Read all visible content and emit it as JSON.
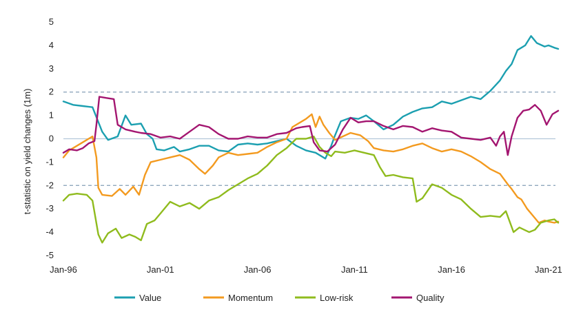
{
  "chart_data": {
    "type": "line",
    "title": "",
    "xlabel": "",
    "ylabel": "t-statistic on yield changes (1m)",
    "xlim": [
      1996.0,
      2021.5
    ],
    "ylim": [
      -5,
      5
    ],
    "y_ticks": [
      5,
      4,
      3,
      2,
      1,
      0,
      -1,
      -2,
      -3,
      -4,
      -5
    ],
    "x_ticks": [
      {
        "label": "Jan-96",
        "x": 1996
      },
      {
        "label": "Jan-01",
        "x": 2001
      },
      {
        "label": "Jan-06",
        "x": 2006
      },
      {
        "label": "Jan-11",
        "x": 2011
      },
      {
        "label": "Jan-16",
        "x": 2016
      },
      {
        "label": "Jan-21",
        "x": 2021
      }
    ],
    "reference_lines": [
      2,
      0,
      -2
    ],
    "legend_position": "bottom",
    "series": [
      {
        "name": "Value",
        "color": "#1b9fb0",
        "points": [
          [
            1996.0,
            1.6
          ],
          [
            1996.5,
            1.45
          ],
          [
            1997.0,
            1.4
          ],
          [
            1997.5,
            1.35
          ],
          [
            1998.0,
            0.3
          ],
          [
            1998.3,
            -0.05
          ],
          [
            1998.8,
            0.1
          ],
          [
            1999.2,
            1.0
          ],
          [
            1999.5,
            0.6
          ],
          [
            2000.0,
            0.65
          ],
          [
            2000.3,
            0.2
          ],
          [
            2000.6,
            0.0
          ],
          [
            2000.8,
            -0.45
          ],
          [
            2001.2,
            -0.5
          ],
          [
            2001.7,
            -0.35
          ],
          [
            2002.0,
            -0.55
          ],
          [
            2002.5,
            -0.45
          ],
          [
            2003.0,
            -0.3
          ],
          [
            2003.5,
            -0.3
          ],
          [
            2004.0,
            -0.5
          ],
          [
            2004.5,
            -0.55
          ],
          [
            2005.0,
            -0.25
          ],
          [
            2005.5,
            -0.2
          ],
          [
            2006.0,
            -0.25
          ],
          [
            2006.5,
            -0.2
          ],
          [
            2007.0,
            -0.1
          ],
          [
            2007.5,
            0.0
          ],
          [
            2008.0,
            -0.3
          ],
          [
            2008.5,
            -0.5
          ],
          [
            2009.0,
            -0.6
          ],
          [
            2009.5,
            -0.85
          ],
          [
            2009.8,
            -0.3
          ],
          [
            2010.0,
            0.15
          ],
          [
            2010.3,
            0.75
          ],
          [
            2010.8,
            0.9
          ],
          [
            2011.2,
            0.85
          ],
          [
            2011.6,
            1.0
          ],
          [
            2012.0,
            0.75
          ],
          [
            2012.5,
            0.4
          ],
          [
            2013.0,
            0.6
          ],
          [
            2013.5,
            0.95
          ],
          [
            2014.0,
            1.15
          ],
          [
            2014.5,
            1.3
          ],
          [
            2015.0,
            1.35
          ],
          [
            2015.5,
            1.6
          ],
          [
            2016.0,
            1.5
          ],
          [
            2016.5,
            1.65
          ],
          [
            2017.0,
            1.8
          ],
          [
            2017.5,
            1.7
          ],
          [
            2018.0,
            2.05
          ],
          [
            2018.5,
            2.5
          ],
          [
            2018.8,
            2.9
          ],
          [
            2019.1,
            3.2
          ],
          [
            2019.4,
            3.8
          ],
          [
            2019.6,
            3.9
          ],
          [
            2019.8,
            4.0
          ],
          [
            2020.1,
            4.4
          ],
          [
            2020.4,
            4.1
          ],
          [
            2020.8,
            3.95
          ],
          [
            2021.0,
            4.0
          ],
          [
            2021.3,
            3.9
          ],
          [
            2021.5,
            3.85
          ]
        ]
      },
      {
        "name": "Momentum",
        "color": "#f39a1f",
        "points": [
          [
            1996.0,
            -0.8
          ],
          [
            1996.3,
            -0.5
          ],
          [
            1996.7,
            -0.3
          ],
          [
            1997.2,
            -0.05
          ],
          [
            1997.5,
            0.1
          ],
          [
            1997.7,
            -0.8
          ],
          [
            1997.8,
            -2.1
          ],
          [
            1998.0,
            -2.4
          ],
          [
            1998.5,
            -2.45
          ],
          [
            1998.9,
            -2.15
          ],
          [
            1999.2,
            -2.4
          ],
          [
            1999.6,
            -2.05
          ],
          [
            1999.9,
            -2.4
          ],
          [
            2000.2,
            -1.55
          ],
          [
            2000.5,
            -1.0
          ],
          [
            2001.0,
            -0.9
          ],
          [
            2001.5,
            -0.8
          ],
          [
            2002.0,
            -0.7
          ],
          [
            2002.5,
            -0.9
          ],
          [
            2003.0,
            -1.3
          ],
          [
            2003.3,
            -1.5
          ],
          [
            2003.7,
            -1.15
          ],
          [
            2004.0,
            -0.8
          ],
          [
            2004.5,
            -0.6
          ],
          [
            2005.0,
            -0.7
          ],
          [
            2005.5,
            -0.65
          ],
          [
            2006.0,
            -0.6
          ],
          [
            2006.5,
            -0.35
          ],
          [
            2007.0,
            -0.15
          ],
          [
            2007.5,
            0.0
          ],
          [
            2007.8,
            0.5
          ],
          [
            2008.2,
            0.7
          ],
          [
            2008.5,
            0.85
          ],
          [
            2008.8,
            1.05
          ],
          [
            2009.0,
            0.5
          ],
          [
            2009.2,
            0.95
          ],
          [
            2009.4,
            0.6
          ],
          [
            2009.7,
            0.25
          ],
          [
            2010.0,
            -0.05
          ],
          [
            2010.4,
            0.1
          ],
          [
            2010.8,
            0.25
          ],
          [
            2011.3,
            0.15
          ],
          [
            2011.7,
            -0.1
          ],
          [
            2012.0,
            -0.4
          ],
          [
            2012.5,
            -0.5
          ],
          [
            2013.0,
            -0.55
          ],
          [
            2013.5,
            -0.45
          ],
          [
            2014.0,
            -0.3
          ],
          [
            2014.5,
            -0.2
          ],
          [
            2015.0,
            -0.4
          ],
          [
            2015.5,
            -0.55
          ],
          [
            2016.0,
            -0.45
          ],
          [
            2016.5,
            -0.55
          ],
          [
            2017.0,
            -0.75
          ],
          [
            2017.5,
            -1.0
          ],
          [
            2018.0,
            -1.3
          ],
          [
            2018.5,
            -1.5
          ],
          [
            2018.9,
            -1.95
          ],
          [
            2019.1,
            -2.15
          ],
          [
            2019.4,
            -2.5
          ],
          [
            2019.6,
            -2.6
          ],
          [
            2019.9,
            -3.0
          ],
          [
            2020.2,
            -3.3
          ],
          [
            2020.5,
            -3.6
          ],
          [
            2020.8,
            -3.5
          ],
          [
            2021.0,
            -3.55
          ],
          [
            2021.3,
            -3.6
          ],
          [
            2021.5,
            -3.55
          ]
        ]
      },
      {
        "name": "Low-risk",
        "color": "#8fbb1d",
        "points": [
          [
            1996.0,
            -2.65
          ],
          [
            1996.3,
            -2.4
          ],
          [
            1996.7,
            -2.35
          ],
          [
            1997.2,
            -2.4
          ],
          [
            1997.5,
            -2.65
          ],
          [
            1997.8,
            -4.1
          ],
          [
            1998.0,
            -4.45
          ],
          [
            1998.3,
            -4.05
          ],
          [
            1998.7,
            -3.85
          ],
          [
            1999.0,
            -4.25
          ],
          [
            1999.4,
            -4.1
          ],
          [
            1999.7,
            -4.2
          ],
          [
            2000.0,
            -4.35
          ],
          [
            2000.3,
            -3.65
          ],
          [
            2000.7,
            -3.5
          ],
          [
            2001.0,
            -3.2
          ],
          [
            2001.5,
            -2.7
          ],
          [
            2002.0,
            -2.9
          ],
          [
            2002.5,
            -2.75
          ],
          [
            2003.0,
            -3.0
          ],
          [
            2003.5,
            -2.65
          ],
          [
            2004.0,
            -2.5
          ],
          [
            2004.5,
            -2.2
          ],
          [
            2005.0,
            -1.95
          ],
          [
            2005.5,
            -1.7
          ],
          [
            2006.0,
            -1.5
          ],
          [
            2006.5,
            -1.15
          ],
          [
            2007.0,
            -0.7
          ],
          [
            2007.5,
            -0.4
          ],
          [
            2008.0,
            0.0
          ],
          [
            2008.5,
            0.0
          ],
          [
            2008.9,
            0.1
          ],
          [
            2009.2,
            -0.35
          ],
          [
            2009.5,
            -0.6
          ],
          [
            2009.8,
            -0.75
          ],
          [
            2010.0,
            -0.55
          ],
          [
            2010.5,
            -0.6
          ],
          [
            2011.0,
            -0.5
          ],
          [
            2011.5,
            -0.6
          ],
          [
            2012.0,
            -0.7
          ],
          [
            2012.3,
            -1.2
          ],
          [
            2012.6,
            -1.6
          ],
          [
            2013.0,
            -1.55
          ],
          [
            2013.5,
            -1.65
          ],
          [
            2014.0,
            -1.7
          ],
          [
            2014.2,
            -2.7
          ],
          [
            2014.5,
            -2.55
          ],
          [
            2015.0,
            -1.95
          ],
          [
            2015.5,
            -2.1
          ],
          [
            2016.0,
            -2.4
          ],
          [
            2016.5,
            -2.6
          ],
          [
            2017.0,
            -3.0
          ],
          [
            2017.5,
            -3.35
          ],
          [
            2018.0,
            -3.3
          ],
          [
            2018.5,
            -3.35
          ],
          [
            2018.8,
            -3.1
          ],
          [
            2019.0,
            -3.55
          ],
          [
            2019.2,
            -4.0
          ],
          [
            2019.5,
            -3.8
          ],
          [
            2020.0,
            -4.0
          ],
          [
            2020.3,
            -3.9
          ],
          [
            2020.6,
            -3.6
          ],
          [
            2021.0,
            -3.5
          ],
          [
            2021.3,
            -3.45
          ],
          [
            2021.5,
            -3.6
          ]
        ]
      },
      {
        "name": "Quality",
        "color": "#a31570",
        "points": [
          [
            1996.0,
            -0.6
          ],
          [
            1996.3,
            -0.45
          ],
          [
            1996.7,
            -0.5
          ],
          [
            1997.0,
            -0.4
          ],
          [
            1997.3,
            -0.2
          ],
          [
            1997.6,
            -0.1
          ],
          [
            1997.7,
            0.6
          ],
          [
            1997.85,
            1.8
          ],
          [
            1998.2,
            1.75
          ],
          [
            1998.6,
            1.7
          ],
          [
            1998.8,
            0.6
          ],
          [
            1999.2,
            0.4
          ],
          [
            1999.7,
            0.3
          ],
          [
            2000.0,
            0.25
          ],
          [
            2000.5,
            0.2
          ],
          [
            2001.0,
            0.05
          ],
          [
            2001.5,
            0.1
          ],
          [
            2002.0,
            0.0
          ],
          [
            2002.5,
            0.3
          ],
          [
            2003.0,
            0.6
          ],
          [
            2003.5,
            0.5
          ],
          [
            2004.0,
            0.2
          ],
          [
            2004.5,
            0.0
          ],
          [
            2005.0,
            0.0
          ],
          [
            2005.5,
            0.1
          ],
          [
            2006.0,
            0.05
          ],
          [
            2006.5,
            0.05
          ],
          [
            2007.0,
            0.2
          ],
          [
            2007.5,
            0.25
          ],
          [
            2008.0,
            0.45
          ],
          [
            2008.3,
            0.5
          ],
          [
            2008.7,
            0.55
          ],
          [
            2008.9,
            -0.15
          ],
          [
            2009.2,
            -0.5
          ],
          [
            2009.6,
            -0.55
          ],
          [
            2010.0,
            -0.25
          ],
          [
            2010.4,
            0.4
          ],
          [
            2010.8,
            0.9
          ],
          [
            2011.2,
            0.7
          ],
          [
            2011.6,
            0.75
          ],
          [
            2012.0,
            0.75
          ],
          [
            2012.5,
            0.55
          ],
          [
            2013.0,
            0.4
          ],
          [
            2013.5,
            0.55
          ],
          [
            2014.0,
            0.5
          ],
          [
            2014.5,
            0.3
          ],
          [
            2015.0,
            0.45
          ],
          [
            2015.5,
            0.35
          ],
          [
            2016.0,
            0.3
          ],
          [
            2016.5,
            0.05
          ],
          [
            2017.0,
            0.0
          ],
          [
            2017.5,
            -0.05
          ],
          [
            2018.0,
            0.05
          ],
          [
            2018.3,
            -0.3
          ],
          [
            2018.5,
            0.1
          ],
          [
            2018.7,
            0.3
          ],
          [
            2018.9,
            -0.7
          ],
          [
            2019.1,
            0.1
          ],
          [
            2019.4,
            0.9
          ],
          [
            2019.7,
            1.2
          ],
          [
            2020.0,
            1.25
          ],
          [
            2020.3,
            1.45
          ],
          [
            2020.6,
            1.2
          ],
          [
            2020.9,
            0.6
          ],
          [
            2021.2,
            1.05
          ],
          [
            2021.5,
            1.2
          ]
        ]
      }
    ]
  }
}
